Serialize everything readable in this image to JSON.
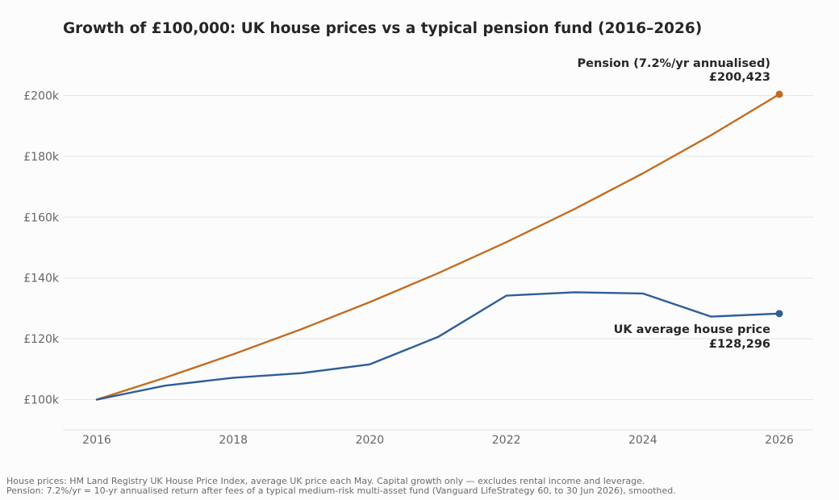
{
  "chart_data": {
    "type": "line",
    "title": "Growth of £100,000: UK house prices vs a typical pension fund (2016–2026)",
    "xlabel": "",
    "ylabel": "",
    "xlim": [
      2015.5,
      2026.5
    ],
    "ylim": [
      90000,
      210000
    ],
    "x_ticks": [
      2016,
      2018,
      2020,
      2022,
      2024,
      2026
    ],
    "x_tick_labels": [
      "2016",
      "2018",
      "2020",
      "2022",
      "2024",
      "2026"
    ],
    "y_ticks": [
      100000,
      120000,
      140000,
      160000,
      180000,
      200000
    ],
    "y_tick_labels": [
      "£100k",
      "£120k",
      "£140k",
      "£160k",
      "£180k",
      "£200k"
    ],
    "grid": "horizontal",
    "legend": "none (end-of-line labels)",
    "x": [
      2016,
      2017,
      2018,
      2019,
      2020,
      2021,
      2022,
      2023,
      2024,
      2025,
      2026
    ],
    "series": [
      {
        "key": "pension",
        "label_line1": "Pension (7.2%/yr annualised)",
        "label_line2": "£200,423",
        "color": "#c46b20",
        "values": [
          100000,
          107200,
          114918,
          123192,
          132062,
          141571,
          151764,
          162691,
          174405,
          186962,
          200423
        ]
      },
      {
        "key": "house",
        "label_line1": "UK average house price",
        "label_line2": "£128,296",
        "color": "#2f5d98",
        "values": [
          100000,
          104600,
          107200,
          108700,
          111600,
          120600,
          134200,
          135300,
          134900,
          127300,
          128296
        ]
      }
    ]
  },
  "footnotes": {
    "line1": "House prices: HM Land Registry UK House Price Index, average UK price each May. Capital growth only — excludes rental income and leverage.",
    "line2": "Pension: 7.2%/yr = 10-yr annualised return after fees of a typical medium-risk multi-asset fund (Vanguard LifeStrategy 60, to 30 Jun 2026), smoothed."
  }
}
